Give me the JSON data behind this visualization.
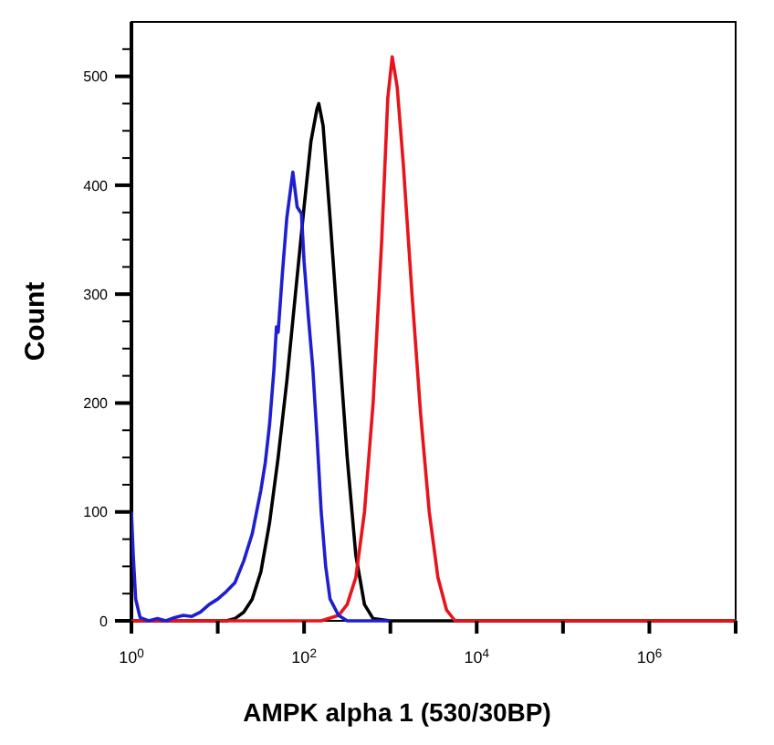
{
  "chart_data": {
    "type": "line",
    "xlabel": "AMPK alpha 1 (530/30BP)",
    "ylabel": "Count",
    "log": "x",
    "grid": false,
    "line_style": "solid",
    "xlim": [
      1,
      10000000
    ],
    "xticks": [
      {
        "value": 1,
        "label": "10$^{0}$"
      },
      {
        "value": 10,
        "label": null
      },
      {
        "value": 100,
        "label": "10$^{2}$"
      },
      {
        "value": 1000,
        "label": null
      },
      {
        "value": 10000,
        "label": "10$^{4}$"
      },
      {
        "value": 100000,
        "label": null
      },
      {
        "value": 1000000,
        "label": "10$^{6}$"
      },
      {
        "value": 10000000,
        "label": null
      }
    ],
    "ylim": [
      0,
      550
    ],
    "yticks": [
      0,
      {
        "value": 25,
        "label": null
      },
      {
        "value": 50,
        "label": null
      },
      {
        "value": 75,
        "label": null
      },
      100,
      {
        "value": 125,
        "label": null
      },
      {
        "value": 150,
        "label": null
      },
      {
        "value": 175,
        "label": null
      },
      200,
      {
        "value": 225,
        "label": null
      },
      {
        "value": 250,
        "label": null
      },
      {
        "value": 275,
        "label": null
      },
      300,
      {
        "value": 325,
        "label": null
      },
      {
        "value": 350,
        "label": null
      },
      {
        "value": 375,
        "label": null
      },
      400,
      {
        "value": 425,
        "label": null
      },
      {
        "value": 450,
        "label": null
      },
      {
        "value": 475,
        "label": null
      },
      500,
      {
        "value": 525,
        "label": null
      }
    ],
    "series": [
      {
        "color": "#000000",
        "x": [
          1,
          6.31,
          12.6,
          15.8,
          20,
          25.1,
          31.6,
          39.8,
          50.1,
          63.1,
          79.4,
          100,
          120,
          141,
          148,
          166,
          200,
          251,
          316,
          398,
          501,
          631,
          1000,
          10000000
        ],
        "values": [
          0,
          0,
          0,
          2,
          8,
          20,
          45,
          90,
          150,
          220,
          300,
          380,
          440,
          470,
          475,
          455,
          370,
          260,
          150,
          60,
          15,
          2,
          0,
          0
        ]
      },
      {
        "color": "#e8141c",
        "x": [
          1,
          158,
          251,
          316,
          398,
          501,
          631,
          794,
          933,
          1050,
          1200,
          1410,
          1780,
          2240,
          2820,
          3550,
          4470,
          5620,
          10000000
        ],
        "values": [
          0,
          0,
          5,
          15,
          40,
          100,
          200,
          350,
          480,
          518,
          490,
          420,
          300,
          190,
          100,
          40,
          10,
          0,
          0
        ]
      },
      {
        "color": "#1f1fd0",
        "x": [
          1,
          1.05,
          1.12,
          1.26,
          1.58,
          2.0,
          2.51,
          3.16,
          3.98,
          5.01,
          6.31,
          7.94,
          10,
          12.6,
          15.8,
          20,
          25.1,
          31.6,
          35.5,
          39.8,
          44.7,
          47.9,
          50.1,
          56.2,
          63.1,
          74.1,
          83.2,
          93.3,
          100,
          112,
          126,
          141,
          158,
          178,
          200,
          251,
          316,
          1000
        ],
        "values": [
          100,
          60,
          20,
          3,
          0,
          2,
          0,
          3,
          5,
          4,
          8,
          15,
          20,
          27,
          35,
          55,
          80,
          120,
          145,
          180,
          230,
          270,
          265,
          320,
          370,
          412,
          380,
          374,
          330,
          280,
          233,
          170,
          100,
          50,
          20,
          5,
          0,
          0
        ]
      }
    ]
  }
}
